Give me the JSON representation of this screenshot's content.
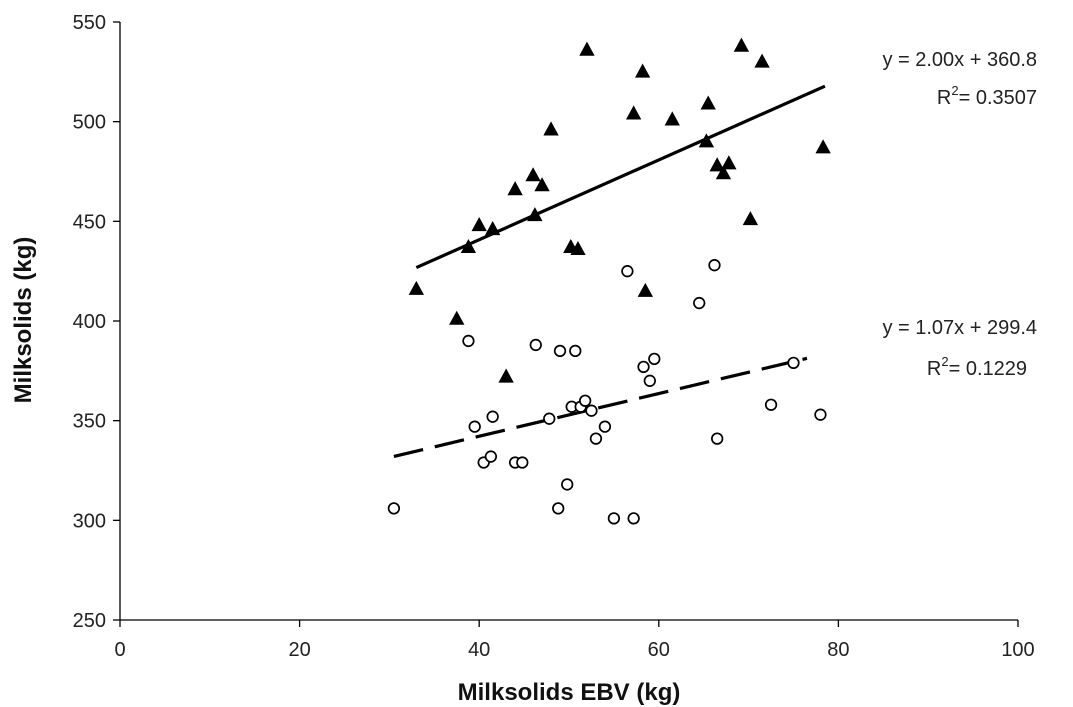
{
  "chart_data": {
    "type": "scatter",
    "xlabel": "Milksolids EBV (kg)",
    "ylabel": "Milksolids (kg)",
    "xlim": [
      0,
      100
    ],
    "ylim": [
      250,
      550
    ],
    "xticks": [
      0,
      20,
      40,
      60,
      80,
      100
    ],
    "yticks": [
      250,
      300,
      350,
      400,
      450,
      500,
      550
    ],
    "grid": false,
    "series": [
      {
        "marker": "filled-triangle",
        "color": "#000000",
        "points": [
          [
            33.0,
            416
          ],
          [
            37.5,
            401
          ],
          [
            38.8,
            437
          ],
          [
            40.0,
            448
          ],
          [
            41.5,
            446
          ],
          [
            43.0,
            372
          ],
          [
            44.0,
            466
          ],
          [
            46.0,
            473
          ],
          [
            46.2,
            453
          ],
          [
            47.0,
            468
          ],
          [
            48.0,
            496
          ],
          [
            50.2,
            437
          ],
          [
            51.0,
            436
          ],
          [
            52.0,
            536
          ],
          [
            57.2,
            504
          ],
          [
            58.2,
            525
          ],
          [
            58.5,
            415
          ],
          [
            61.5,
            501
          ],
          [
            65.3,
            490
          ],
          [
            65.5,
            509
          ],
          [
            66.5,
            478
          ],
          [
            67.2,
            474
          ],
          [
            67.8,
            479
          ],
          [
            69.2,
            538
          ],
          [
            70.2,
            451
          ],
          [
            71.5,
            530
          ],
          [
            78.3,
            487
          ]
        ],
        "trendline": {
          "slope": 2.0,
          "intercept": 360.8,
          "x_range": [
            33,
            78.5
          ],
          "style": "solid"
        },
        "equation_label": "y = 2.00x + 360.8",
        "r2_label": "R",
        "r2_value": "= 0.3507"
      },
      {
        "marker": "open-circle",
        "color": "#000000",
        "points": [
          [
            30.5,
            306
          ],
          [
            38.8,
            390
          ],
          [
            39.5,
            347
          ],
          [
            40.5,
            329
          ],
          [
            41.3,
            332
          ],
          [
            41.5,
            352
          ],
          [
            44.0,
            329
          ],
          [
            44.8,
            329
          ],
          [
            46.3,
            388
          ],
          [
            47.8,
            351
          ],
          [
            48.8,
            306
          ],
          [
            49.0,
            385
          ],
          [
            49.8,
            318
          ],
          [
            50.3,
            357
          ],
          [
            50.7,
            385
          ],
          [
            51.3,
            357
          ],
          [
            51.8,
            360
          ],
          [
            52.5,
            355
          ],
          [
            53.0,
            341
          ],
          [
            54.0,
            347
          ],
          [
            55.0,
            301
          ],
          [
            56.5,
            425
          ],
          [
            57.2,
            301
          ],
          [
            58.3,
            377
          ],
          [
            59.0,
            370
          ],
          [
            59.5,
            381
          ],
          [
            64.5,
            409
          ],
          [
            66.2,
            428
          ],
          [
            66.5,
            341
          ],
          [
            72.5,
            358
          ],
          [
            75.0,
            379
          ],
          [
            78.0,
            353
          ]
        ],
        "trendline": {
          "slope": 1.07,
          "intercept": 299.4,
          "x_range": [
            30.5,
            76.5
          ],
          "style": "dashed"
        },
        "equation_label": "y = 1.07x + 299.4",
        "r2_label": "R",
        "r2_value": "= 0.1229"
      }
    ],
    "r2_superscript": "2"
  }
}
